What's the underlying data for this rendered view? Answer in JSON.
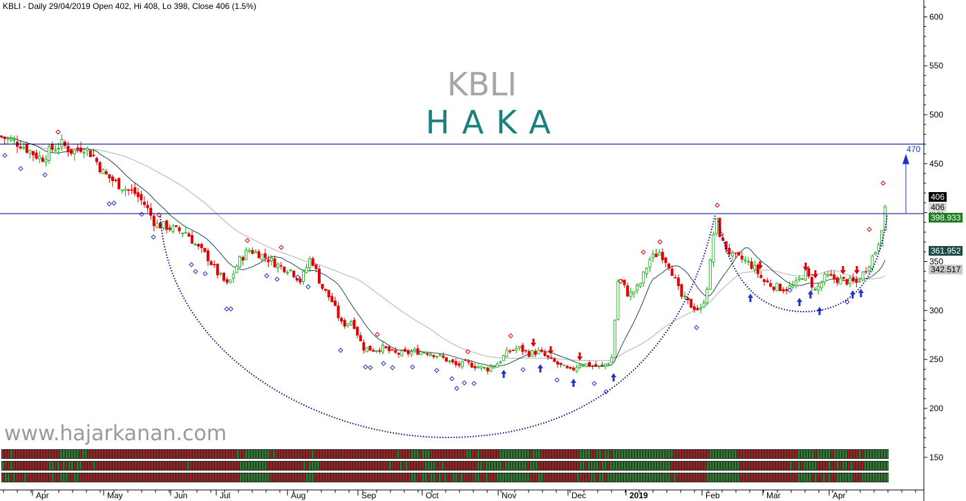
{
  "header": "KBLI - Daily 29/04/2019 Open 402, Hi 408, Lo 398, Close 406 (1.5%)",
  "title_top": "KBLI",
  "title_bottom": "HAKA",
  "watermark": "www.hajarkanan.com",
  "price_labels": {
    "last_black": "406",
    "last_grey": "406",
    "green_level": "398.933",
    "ma_short": "361.952",
    "ma_long": "342.517"
  },
  "target_label": "470",
  "chart_data": {
    "type": "candlestick",
    "y_ticks": [
      150,
      200,
      250,
      300,
      350,
      400,
      450,
      500,
      550,
      600
    ],
    "x_ticks": [
      "Apr",
      "May",
      "Jun",
      "Jul",
      "Aug",
      "Sep",
      "Oct",
      "Nov",
      "Dec",
      "2019",
      "Feb",
      "Mar",
      "Apr"
    ],
    "ylim": [
      125,
      610
    ],
    "horizontal_lines": [
      470,
      398.933
    ],
    "target": 470,
    "colors": {
      "up": "#00aa00",
      "down": "#e00000",
      "ma_short": "#1e4b46",
      "ma_long": "#b0b0b0",
      "curve": "#00008b"
    },
    "price_path": [
      [
        0,
        478
      ],
      [
        30,
        470
      ],
      [
        45,
        462
      ],
      [
        60,
        455
      ],
      [
        75,
        465
      ],
      [
        90,
        470
      ],
      [
        105,
        462
      ],
      [
        120,
        468
      ],
      [
        135,
        458
      ],
      [
        150,
        440
      ],
      [
        165,
        432
      ],
      [
        180,
        425
      ],
      [
        195,
        420
      ],
      [
        210,
        408
      ],
      [
        225,
        388
      ],
      [
        240,
        386
      ],
      [
        255,
        382
      ],
      [
        270,
        380
      ],
      [
        285,
        365
      ],
      [
        300,
        355
      ],
      [
        315,
        338
      ],
      [
        330,
        325
      ],
      [
        345,
        350
      ],
      [
        360,
        362
      ],
      [
        375,
        358
      ],
      [
        390,
        352
      ],
      [
        405,
        345
      ],
      [
        420,
        342
      ],
      [
        435,
        330
      ],
      [
        450,
        355
      ],
      [
        465,
        325
      ],
      [
        480,
        310
      ],
      [
        495,
        285
      ],
      [
        510,
        290
      ],
      [
        525,
        262
      ],
      [
        540,
        260
      ],
      [
        555,
        262
      ],
      [
        570,
        256
      ],
      [
        585,
        256
      ],
      [
        600,
        258
      ],
      [
        615,
        258
      ],
      [
        630,
        255
      ],
      [
        645,
        250
      ],
      [
        660,
        244
      ],
      [
        675,
        246
      ],
      [
        690,
        243
      ],
      [
        705,
        240
      ],
      [
        720,
        246
      ],
      [
        735,
        258
      ],
      [
        750,
        262
      ],
      [
        765,
        256
      ],
      [
        780,
        258
      ],
      [
        795,
        250
      ],
      [
        810,
        244
      ],
      [
        825,
        238
      ],
      [
        840,
        246
      ],
      [
        855,
        244
      ],
      [
        870,
        242
      ],
      [
        885,
        250
      ],
      [
        895,
        335
      ],
      [
        910,
        315
      ],
      [
        925,
        325
      ],
      [
        940,
        352
      ],
      [
        955,
        360
      ],
      [
        970,
        345
      ],
      [
        985,
        315
      ],
      [
        1000,
        305
      ],
      [
        1015,
        300
      ],
      [
        1025,
        330
      ],
      [
        1035,
        395
      ],
      [
        1045,
        370
      ],
      [
        1060,
        355
      ],
      [
        1075,
        352
      ],
      [
        1090,
        345
      ],
      [
        1105,
        330
      ],
      [
        1120,
        325
      ],
      [
        1135,
        322
      ],
      [
        1150,
        325
      ],
      [
        1165,
        340
      ],
      [
        1180,
        320
      ],
      [
        1195,
        335
      ],
      [
        1210,
        332
      ],
      [
        1225,
        330
      ],
      [
        1240,
        328
      ],
      [
        1255,
        345
      ],
      [
        1270,
        365
      ],
      [
        1280,
        400
      ],
      [
        1284,
        406
      ]
    ]
  }
}
